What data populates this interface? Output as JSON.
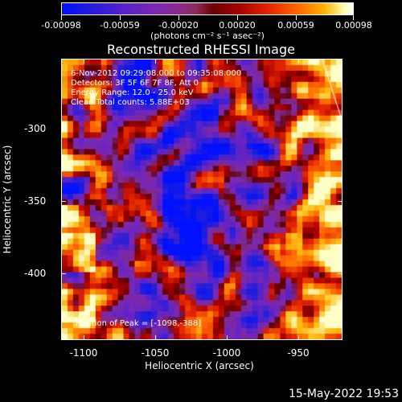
{
  "colorbar": {
    "labels": [
      "-0.00098",
      "-0.00059",
      "-0.00020",
      "0.00020",
      "0.00059",
      "0.00098"
    ],
    "units": "(photons cm⁻² s⁻¹ asec⁻²)"
  },
  "title": "Reconstructed RHESSI Image",
  "info": {
    "line1": "6-Nov-2012 09:29:08.000 to 09:35:08.000",
    "line2": "Detectors: 3F 5F 6F 7F 8F, Att 0",
    "line3": "Energy Range: 12.0 - 25.0 keV",
    "line4": "Clean     Total counts: 5.88E+03"
  },
  "peak": "Position of Peak = [-1098,-388]",
  "x_axis": {
    "label": "Heliocentric X (arcsec)",
    "ticks": [
      "-1100",
      "-1050",
      "-1000",
      "-950"
    ]
  },
  "y_axis": {
    "label": "Heliocentric Y (arcsec)",
    "ticks": [
      "-300",
      "-350",
      "-400"
    ]
  },
  "timestamp": "15-May-2022 19:53"
}
